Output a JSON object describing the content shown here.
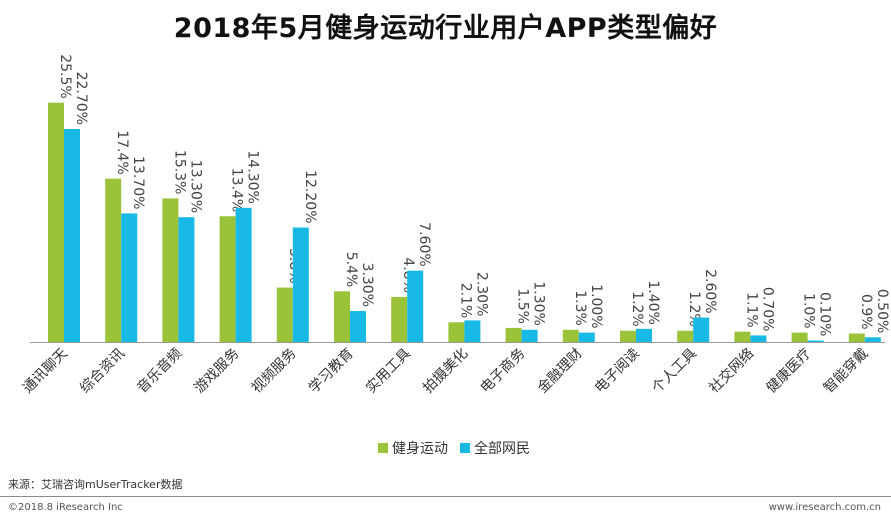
{
  "page": {
    "title": "2018年5月健身运动行业用户APP类型偏好",
    "source": "来源：艾瑞咨询mUserTracker数据",
    "copyright": "©2018.8 iResearch Inc",
    "site": "www.iresearch.com.cn"
  },
  "colors": {
    "fitness": "#9BC33A",
    "all": "#19B9E6",
    "axis": "#999999",
    "label": "#444444"
  },
  "chart_data": {
    "type": "bar",
    "title": "2018年5月健身运动行业用户APP类型偏好",
    "xlabel": "",
    "ylabel": "",
    "ylim": [
      0,
      26
    ],
    "grid": false,
    "legend_position": "bottom",
    "categories": [
      "通讯聊天",
      "综合资讯",
      "音乐音频",
      "游戏服务",
      "视频服务",
      "学习教育",
      "实用工具",
      "拍摄美化",
      "电子商务",
      "金融理财",
      "电子阅读",
      "个人工具",
      "社交网络",
      "健康医疗",
      "智能穿戴"
    ],
    "series": [
      {
        "name": "健身运动",
        "values": [
          25.5,
          17.4,
          15.3,
          13.4,
          5.8,
          5.4,
          4.8,
          2.1,
          1.5,
          1.3,
          1.2,
          1.2,
          1.1,
          1.0,
          0.9
        ],
        "labels": [
          "25.5%",
          "17.4%",
          "15.3%",
          "13.4%",
          "5.8%",
          "5.4%",
          "4.8%",
          "2.1%",
          "1.5%",
          "1.3%",
          "1.2%",
          "1.2%",
          "1.1%",
          "1.0%",
          "0.9%"
        ]
      },
      {
        "name": "全部网民",
        "values": [
          22.7,
          13.7,
          13.3,
          14.3,
          12.2,
          3.3,
          7.6,
          2.3,
          1.3,
          1.0,
          1.4,
          2.6,
          0.7,
          0.1,
          0.5
        ],
        "labels": [
          "22.70%",
          "13.70%",
          "13.30%",
          "14.30%",
          "12.20%",
          "3.30%",
          "7.60%",
          "2.30%",
          "1.30%",
          "1.00%",
          "1.40%",
          "2.60%",
          "0.70%",
          "0.10%",
          "0.50%"
        ]
      }
    ]
  }
}
